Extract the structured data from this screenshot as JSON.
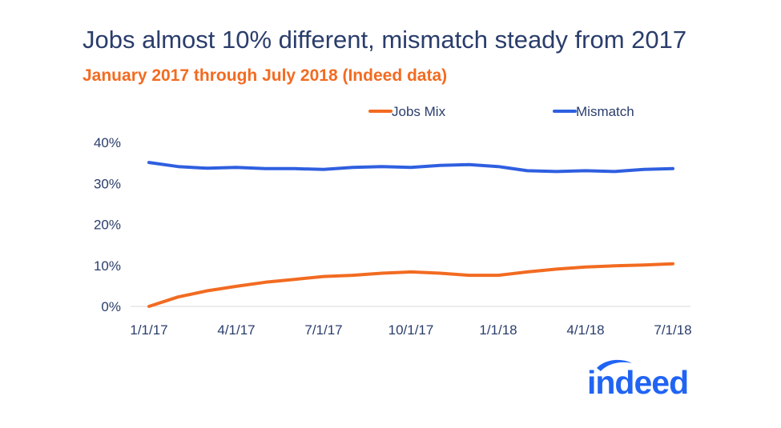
{
  "title": "Jobs almost 10% different, mismatch steady from 2017",
  "subtitle": "January 2017 through July 2018 (Indeed data)",
  "colors": {
    "title": "#2a3d6b",
    "subtitle": "#f26b21",
    "jobs_mix": "#f26b21",
    "mismatch": "#2f5fe0",
    "axis_text": "#2a3d6b",
    "logo": "#2164f4"
  },
  "logo_text": "indeed",
  "chart_data": {
    "type": "line",
    "x": [
      "1/1/17",
      "2/1/17",
      "3/1/17",
      "4/1/17",
      "5/1/17",
      "6/1/17",
      "7/1/17",
      "8/1/17",
      "9/1/17",
      "10/1/17",
      "11/1/17",
      "12/1/17",
      "1/1/18",
      "2/1/18",
      "3/1/18",
      "4/1/18",
      "5/1/18",
      "6/1/18",
      "7/1/18"
    ],
    "x_tick_labels": [
      "1/1/17",
      "4/1/17",
      "7/1/17",
      "10/1/17",
      "1/1/18",
      "4/1/18",
      "7/1/18"
    ],
    "y_tick_labels": [
      "0%",
      "10%",
      "20%",
      "30%",
      "40%"
    ],
    "ylim": [
      0,
      40
    ],
    "grid": false,
    "legend_position": "top",
    "series": [
      {
        "name": "Jobs Mix",
        "color": "#f26b21",
        "values": [
          0,
          2.3,
          3.8,
          4.9,
          5.9,
          6.6,
          7.3,
          7.6,
          8.1,
          8.4,
          8.1,
          7.6,
          7.6,
          8.4,
          9.1,
          9.6,
          9.9,
          10.1,
          10.4
        ]
      },
      {
        "name": "Mismatch",
        "color": "#2f5fe0",
        "values": [
          35.1,
          34.1,
          33.7,
          33.9,
          33.6,
          33.6,
          33.4,
          33.9,
          34.1,
          33.9,
          34.4,
          34.6,
          34.1,
          33.1,
          32.9,
          33.1,
          32.9,
          33.4,
          33.6
        ]
      }
    ]
  }
}
